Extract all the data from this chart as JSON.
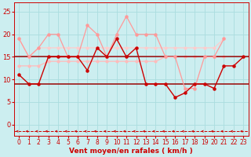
{
  "x": [
    0,
    1,
    2,
    3,
    4,
    5,
    6,
    7,
    8,
    9,
    10,
    11,
    12,
    13,
    14,
    15,
    16,
    17,
    18,
    19,
    20,
    21,
    22,
    23
  ],
  "line_dark_red": [
    11,
    9,
    9,
    15,
    15,
    15,
    15,
    12,
    17,
    15,
    19,
    15,
    17,
    9,
    9,
    9,
    6,
    7,
    9,
    9,
    8,
    13,
    13,
    15
  ],
  "line_pink_gust": [
    19,
    15,
    17,
    20,
    20,
    15,
    15,
    22,
    20,
    15,
    20,
    24,
    20,
    20,
    20,
    15,
    15,
    8,
    8,
    15,
    15,
    19,
    null,
    null
  ],
  "line_light_avg1": [
    13,
    13,
    13,
    14,
    14,
    14,
    14,
    14,
    14,
    14,
    14,
    14,
    14,
    14,
    14,
    15,
    15,
    15,
    15,
    15,
    15,
    15,
    null,
    null
  ],
  "line_light_avg2": [
    19,
    15,
    17,
    17,
    17,
    17,
    17,
    17,
    17,
    17,
    17,
    17,
    17,
    17,
    17,
    17,
    17,
    17,
    17,
    17,
    17,
    19,
    null,
    null
  ],
  "hline_low": 9,
  "hline_high": 15,
  "bg_color": "#cceef0",
  "grid_color": "#aadddf",
  "color_dark_red": "#cc0000",
  "color_pink": "#ff9999",
  "color_light1": "#ffbbbb",
  "color_light2": "#ffcccc",
  "color_hline": "#990000",
  "xlabel": "Vent moyen/en rafales ( km/h )",
  "yticks": [
    0,
    5,
    10,
    15,
    20,
    25
  ],
  "xticks": [
    0,
    1,
    2,
    3,
    4,
    5,
    6,
    7,
    8,
    9,
    10,
    11,
    12,
    13,
    14,
    15,
    16,
    17,
    18,
    19,
    20,
    21,
    22,
    23
  ],
  "ylim": [
    -2.5,
    27
  ],
  "xlim": [
    -0.5,
    23.5
  ]
}
